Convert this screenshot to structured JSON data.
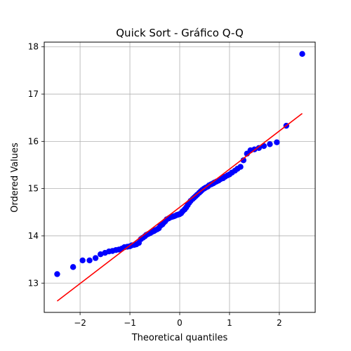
{
  "chart_data": {
    "type": "scatter",
    "title": "Quick Sort - Gráfico Q-Q",
    "xlabel": "Theoretical quantiles",
    "ylabel": "Ordered Values",
    "xlim": [
      -2.72,
      2.72
    ],
    "ylim": [
      12.38,
      18.1
    ],
    "grid": true,
    "x_ticks": [
      -2,
      -1,
      0,
      1,
      2
    ],
    "y_ticks": [
      13,
      14,
      15,
      16,
      17,
      18
    ],
    "point_color": "#0000ff",
    "line_color": "#ff0000",
    "fit_line": {
      "x": [
        -2.46,
        2.46
      ],
      "y": [
        12.62,
        16.59
      ]
    },
    "points": [
      [
        -2.46,
        13.19
      ],
      [
        -2.14,
        13.34
      ],
      [
        -1.95,
        13.48
      ],
      [
        -1.81,
        13.48
      ],
      [
        -1.69,
        13.53
      ],
      [
        -1.59,
        13.61
      ],
      [
        -1.5,
        13.64
      ],
      [
        -1.42,
        13.67
      ],
      [
        -1.35,
        13.68
      ],
      [
        -1.28,
        13.7
      ],
      [
        -1.22,
        13.71
      ],
      [
        -1.16,
        13.73
      ],
      [
        -1.11,
        13.76
      ],
      [
        -1.05,
        13.77
      ],
      [
        -1.0,
        13.78
      ],
      [
        -0.96,
        13.8
      ],
      [
        -0.91,
        13.81
      ],
      [
        -0.87,
        13.82
      ],
      [
        -0.82,
        13.85
      ],
      [
        -0.78,
        13.93
      ],
      [
        -0.74,
        13.96
      ],
      [
        -0.7,
        13.99
      ],
      [
        -0.67,
        14.02
      ],
      [
        -0.63,
        14.04
      ],
      [
        -0.59,
        14.06
      ],
      [
        -0.56,
        14.08
      ],
      [
        -0.52,
        14.1
      ],
      [
        -0.49,
        14.12
      ],
      [
        -0.45,
        14.14
      ],
      [
        -0.42,
        14.16
      ],
      [
        -0.39,
        14.21
      ],
      [
        -0.35,
        14.24
      ],
      [
        -0.32,
        14.28
      ],
      [
        -0.29,
        14.31
      ],
      [
        -0.26,
        14.35
      ],
      [
        -0.22,
        14.37
      ],
      [
        -0.19,
        14.39
      ],
      [
        -0.16,
        14.4
      ],
      [
        -0.13,
        14.41
      ],
      [
        -0.1,
        14.42
      ],
      [
        -0.06,
        14.44
      ],
      [
        -0.03,
        14.45
      ],
      [
        0.0,
        14.46
      ],
      [
        0.03,
        14.48
      ],
      [
        0.06,
        14.52
      ],
      [
        0.1,
        14.56
      ],
      [
        0.13,
        14.6
      ],
      [
        0.16,
        14.65
      ],
      [
        0.19,
        14.7
      ],
      [
        0.22,
        14.74
      ],
      [
        0.26,
        14.78
      ],
      [
        0.29,
        14.81
      ],
      [
        0.32,
        14.84
      ],
      [
        0.35,
        14.87
      ],
      [
        0.39,
        14.91
      ],
      [
        0.42,
        14.94
      ],
      [
        0.45,
        14.97
      ],
      [
        0.49,
        15.0
      ],
      [
        0.52,
        15.02
      ],
      [
        0.56,
        15.04
      ],
      [
        0.59,
        15.07
      ],
      [
        0.63,
        15.09
      ],
      [
        0.67,
        15.11
      ],
      [
        0.7,
        15.13
      ],
      [
        0.74,
        15.15
      ],
      [
        0.78,
        15.17
      ],
      [
        0.82,
        15.2
      ],
      [
        0.87,
        15.22
      ],
      [
        0.91,
        15.25
      ],
      [
        0.96,
        15.28
      ],
      [
        1.0,
        15.3
      ],
      [
        1.05,
        15.34
      ],
      [
        1.11,
        15.38
      ],
      [
        1.16,
        15.42
      ],
      [
        1.22,
        15.46
      ],
      [
        1.28,
        15.6
      ],
      [
        1.35,
        15.74
      ],
      [
        1.42,
        15.81
      ],
      [
        1.5,
        15.83
      ],
      [
        1.59,
        15.86
      ],
      [
        1.69,
        15.9
      ],
      [
        1.81,
        15.94
      ],
      [
        1.95,
        15.98
      ],
      [
        2.14,
        16.33
      ],
      [
        2.46,
        17.85
      ]
    ]
  }
}
